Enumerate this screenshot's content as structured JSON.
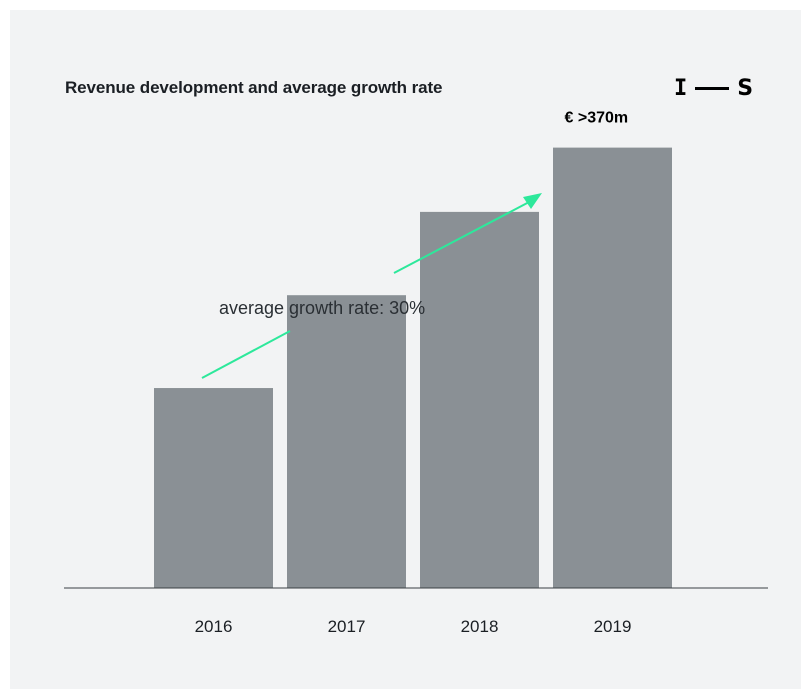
{
  "chart_data": {
    "type": "bar",
    "title": "Revenue development and average growth rate",
    "categories": [
      "2016",
      "2017",
      "2018",
      "2019"
    ],
    "values": [
      168,
      246,
      316,
      370
    ],
    "ylim": [
      0,
      410
    ],
    "data_labels": [
      "",
      "",
      "",
      "€ >370m"
    ],
    "annotation": "average growth rate: 30%",
    "colors": {
      "bar": "#8a9095",
      "arrow": "#2de89b"
    },
    "grid": false,
    "legend": "none"
  },
  "logo": {
    "left": "I",
    "right": "S"
  }
}
